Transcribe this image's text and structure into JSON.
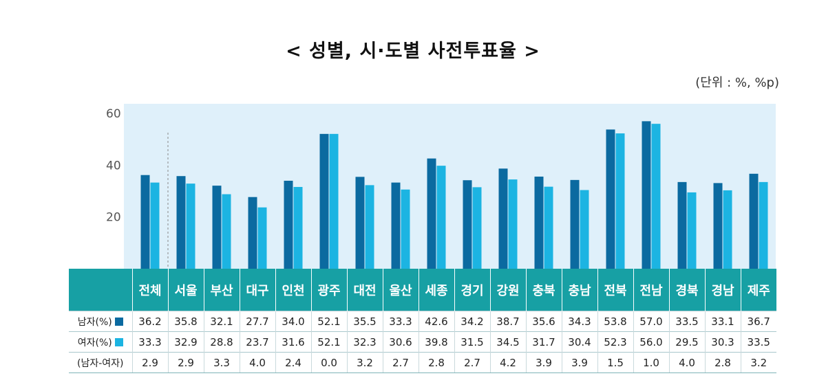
{
  "title": "< 성별, 시·도별 사전투표율 >",
  "unit": "(단위 : %, %p)",
  "colors": {
    "male": "#0b6aa0",
    "female": "#1cb4e2",
    "header": "#17a0a4",
    "plot_bg": "#dff0fa"
  },
  "row_labels": {
    "male": "남자(%)",
    "female": "여자(%)",
    "diff": "(남자-여자)"
  },
  "chart_data": {
    "type": "bar",
    "categories": [
      "전체",
      "서울",
      "부산",
      "대구",
      "인천",
      "광주",
      "대전",
      "울산",
      "세종",
      "경기",
      "강원",
      "충북",
      "충남",
      "전북",
      "전남",
      "경북",
      "경남",
      "제주"
    ],
    "series": [
      {
        "name": "남자(%)",
        "values": [
          36.2,
          35.8,
          32.1,
          27.7,
          34.0,
          52.1,
          35.5,
          33.3,
          42.6,
          34.2,
          38.7,
          35.6,
          34.3,
          53.8,
          57.0,
          33.5,
          33.1,
          36.7
        ]
      },
      {
        "name": "여자(%)",
        "values": [
          33.3,
          32.9,
          28.8,
          23.7,
          31.6,
          52.1,
          32.3,
          30.6,
          39.8,
          31.5,
          34.5,
          31.7,
          30.4,
          52.3,
          56.0,
          29.5,
          30.3,
          33.5
        ]
      }
    ],
    "diff": [
      "2.9",
      "2.9",
      "3.3",
      "4.0",
      "2.4",
      "0.0",
      "3.2",
      "2.7",
      "2.8",
      "2.7",
      "4.2",
      "3.9",
      "3.9",
      "1.5",
      "1.0",
      "4.0",
      "2.8",
      "3.2"
    ],
    "male_labels": [
      "36.2",
      "35.8",
      "32.1",
      "27.7",
      "34.0",
      "52.1",
      "35.5",
      "33.3",
      "42.6",
      "34.2",
      "38.7",
      "35.6",
      "34.3",
      "53.8",
      "57.0",
      "33.5",
      "33.1",
      "36.7"
    ],
    "female_labels": [
      "33.3",
      "32.9",
      "28.8",
      "23.7",
      "31.6",
      "52.1",
      "32.3",
      "30.6",
      "39.8",
      "31.5",
      "34.5",
      "31.7",
      "30.4",
      "52.3",
      "56.0",
      "29.5",
      "30.3",
      "33.5"
    ],
    "yticks": [
      "20",
      "40",
      "60"
    ],
    "ylim": [
      0,
      62
    ],
    "grid": false
  }
}
